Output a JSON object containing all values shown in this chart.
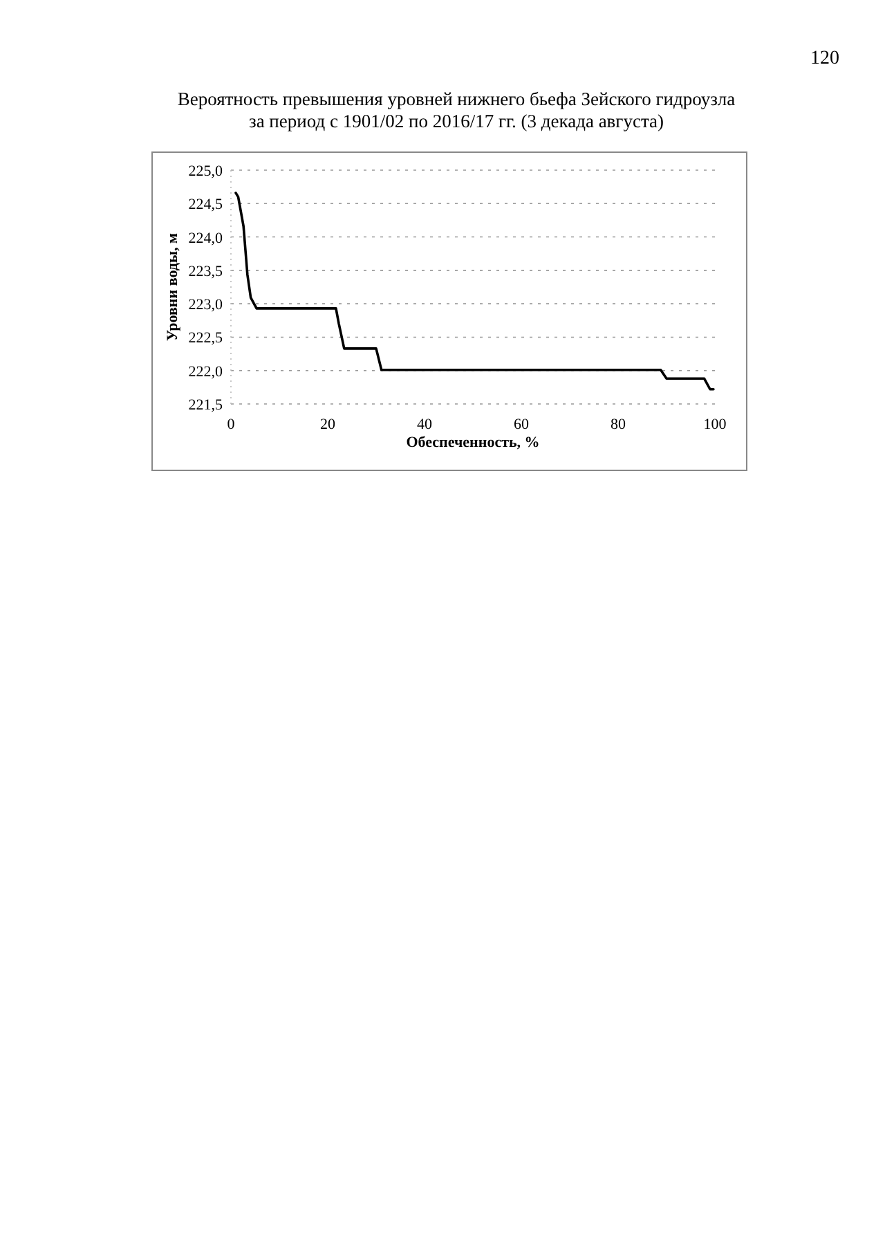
{
  "chart_data": {
    "type": "line",
    "title": "Вероятность превышения уровней нижнего бьефа Зейского гидроузла\nза период с 1901/02 по 2016/17 гг. (3 декада августа)",
    "xlabel": "Обеспеченность, %",
    "ylabel": "Уровни воды, м",
    "annotations": [
      "120"
    ],
    "series": [
      {
        "color": "#000000",
        "x": [
          1.0,
          1.5,
          2.0,
          2.6,
          3.0,
          3.4,
          4.1,
          5.3,
          8,
          15,
          21.7,
          22.3,
          23.4,
          27,
          30.0,
          31.1,
          40,
          60,
          80,
          88.8,
          90.0,
          95,
          97.8,
          99.0,
          99.7
        ],
        "values": [
          224.66,
          224.6,
          224.4,
          224.16,
          223.8,
          223.44,
          223.09,
          222.93,
          222.93,
          222.93,
          222.93,
          222.7,
          222.33,
          222.33,
          222.33,
          222.01,
          222.01,
          222.01,
          222.01,
          222.01,
          221.88,
          221.88,
          221.88,
          221.72,
          221.72
        ]
      }
    ],
    "xlim": [
      0,
      100
    ],
    "xticks": [
      0,
      20,
      40,
      60,
      80,
      100
    ],
    "ylim": [
      221.5,
      225.0
    ],
    "yticks": [
      {
        "value": 221.5,
        "label": "221,5"
      },
      {
        "value": 222.0,
        "label": "222,0"
      },
      {
        "value": 222.5,
        "label": "222,5"
      },
      {
        "value": 223.0,
        "label": "223,0"
      },
      {
        "value": 223.5,
        "label": "223,5"
      },
      {
        "value": 224.0,
        "label": "224,0"
      },
      {
        "value": 224.5,
        "label": "224,5"
      },
      {
        "value": 225.0,
        "label": "225,0"
      }
    ],
    "grid": "y",
    "marker": "none",
    "line_style": "solid"
  }
}
